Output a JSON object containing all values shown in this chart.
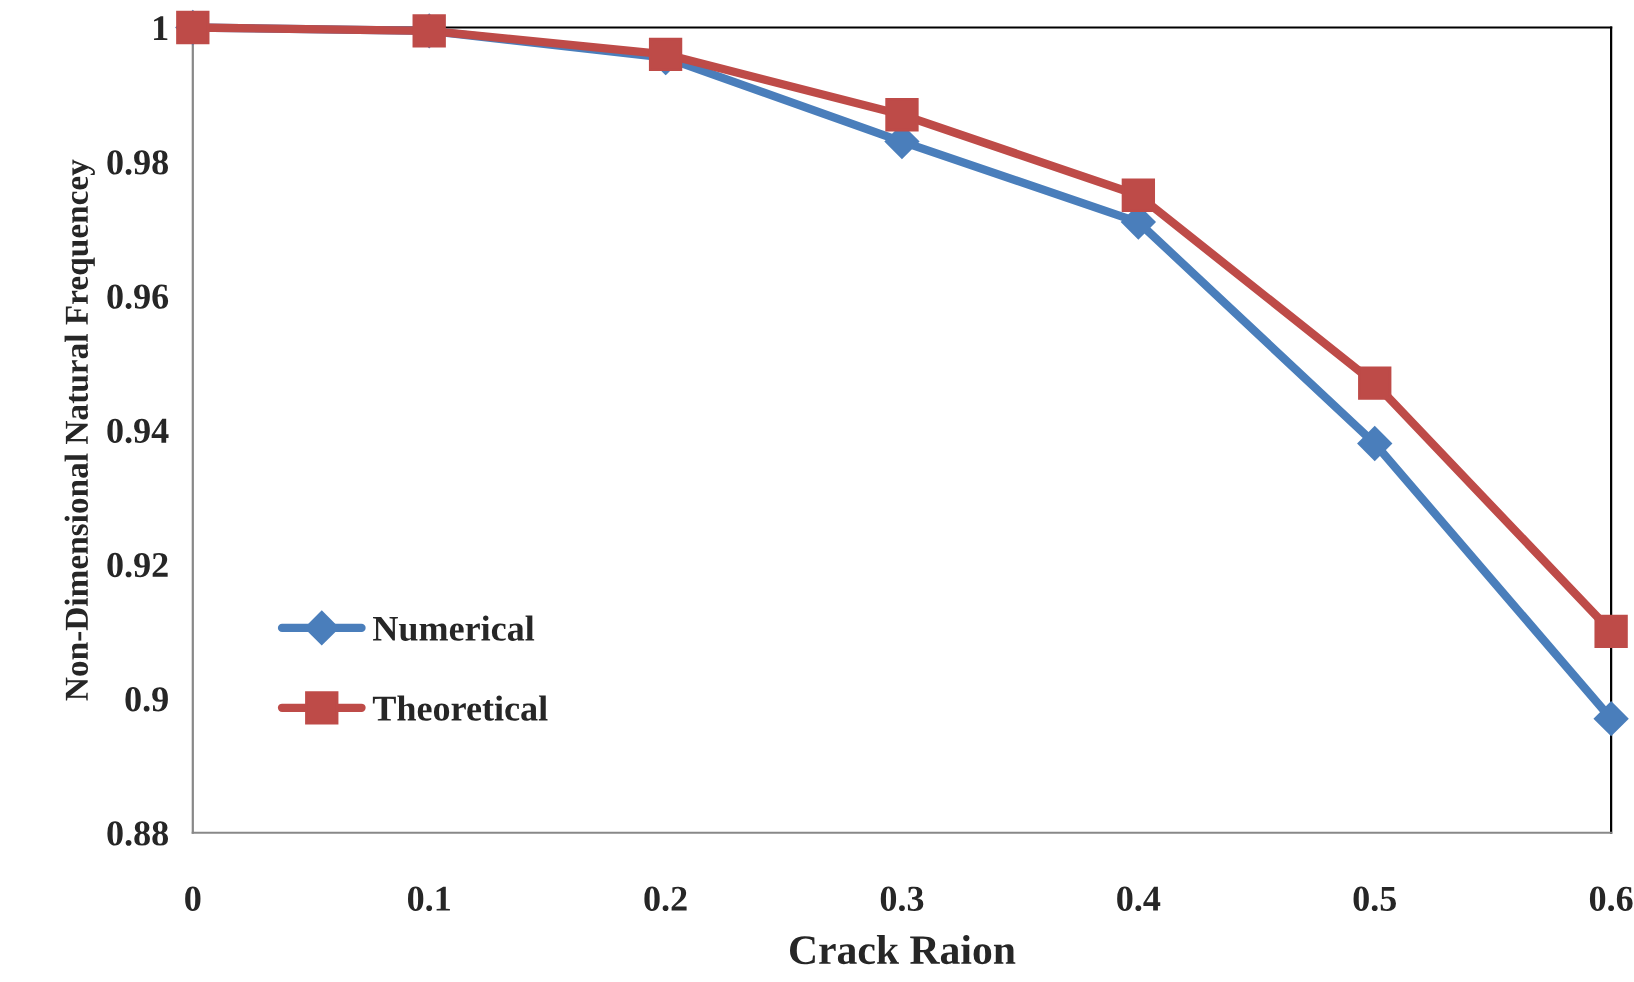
{
  "chart_data": {
    "type": "line",
    "xlabel": "Crack Raion",
    "ylabel": "Non-Dimensional Natural Frequencey",
    "x": [
      0,
      0.1,
      0.2,
      0.3,
      0.4,
      0.5,
      0.6
    ],
    "series": [
      {
        "name": "Numerical",
        "color": "#4a7ebb",
        "marker": "diamond",
        "values": [
          1,
          0.9995,
          0.9955,
          0.983,
          0.971,
          0.938,
          0.897
        ]
      },
      {
        "name": "Theoretical",
        "color": "#be4b48",
        "marker": "square",
        "values": [
          1,
          0.9995,
          0.996,
          0.987,
          0.975,
          0.947,
          0.91
        ]
      }
    ],
    "xlim": [
      0,
      0.6
    ],
    "xticks": [
      0,
      0.1,
      0.2,
      0.3,
      0.4,
      0.5,
      0.6
    ],
    "ylim": [
      0.88,
      1
    ],
    "yticks": [
      0.88,
      0.9,
      0.92,
      0.94,
      0.96,
      0.98,
      1
    ],
    "grid": false,
    "legend": "left",
    "line_style": "solid"
  }
}
